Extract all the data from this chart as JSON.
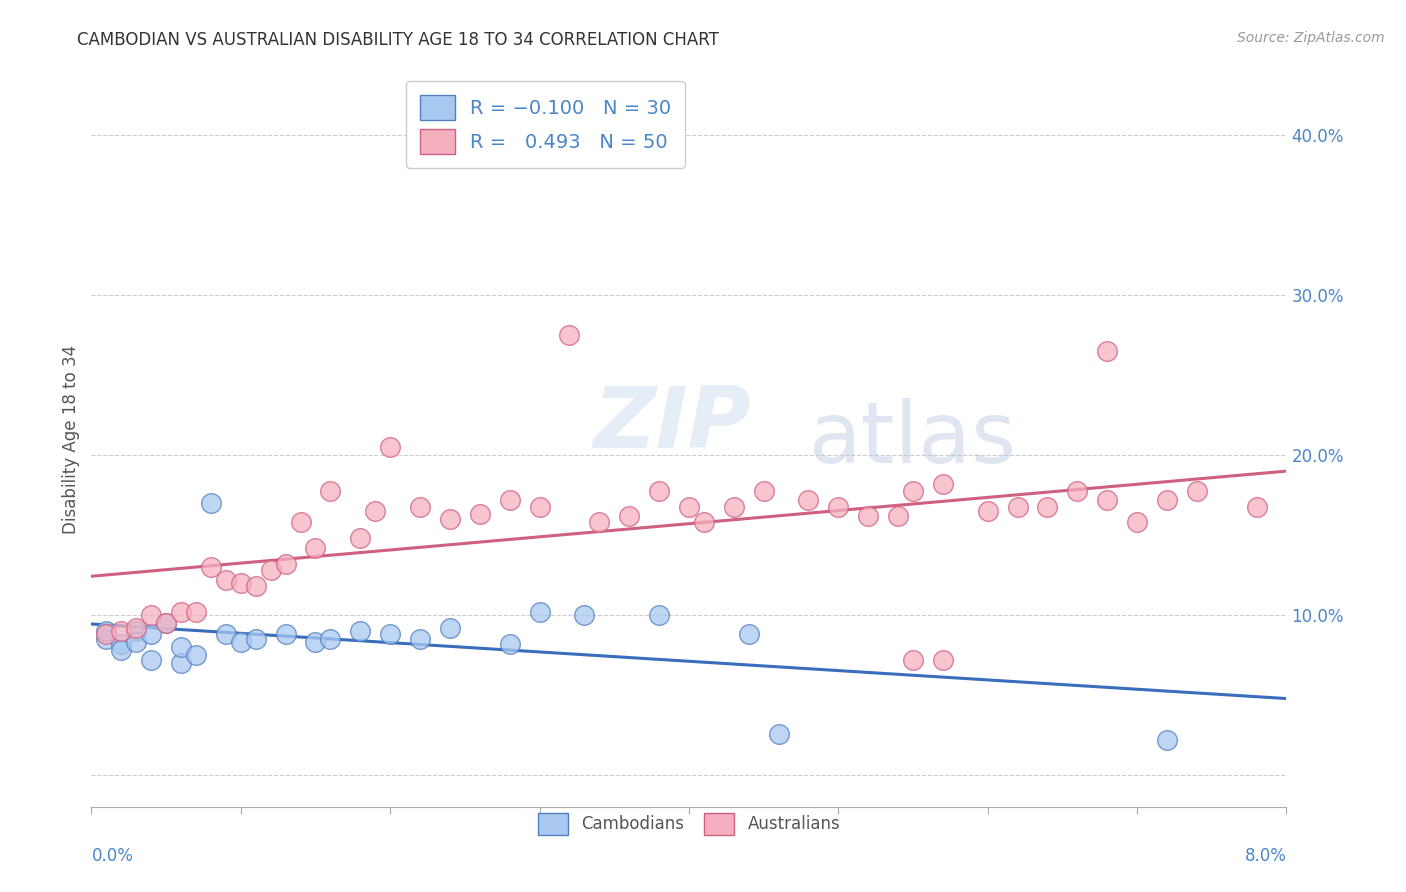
{
  "title": "CAMBODIAN VS AUSTRALIAN DISABILITY AGE 18 TO 34 CORRELATION CHART",
  "source": "Source: ZipAtlas.com",
  "ylabel": "Disability Age 18 to 34",
  "xlim": [
    0.0,
    0.08
  ],
  "ylim": [
    -0.02,
    0.44
  ],
  "yticks": [
    0.0,
    0.1,
    0.2,
    0.3,
    0.4
  ],
  "ytick_labels": [
    "",
    "10.0%",
    "20.0%",
    "30.0%",
    "40.0%"
  ],
  "xticks": [
    0.0,
    0.01,
    0.02,
    0.03,
    0.04,
    0.05,
    0.06,
    0.07,
    0.08
  ],
  "title_fontsize": 12,
  "source_fontsize": 10,
  "tick_color": "#4a86c8",
  "cambodian_fill": "#a8c8f0",
  "australian_fill": "#f5b0c0",
  "cambodian_edge": "#5080c0",
  "australian_edge": "#d06080",
  "cambodian_line": "#3a6ebd",
  "australian_line": "#d06080",
  "watermark_zip": "ZIP",
  "watermark_atlas": "atlas",
  "cambodians_x": [
    0.001,
    0.001,
    0.002,
    0.002,
    0.003,
    0.003,
    0.004,
    0.004,
    0.005,
    0.006,
    0.006,
    0.007,
    0.008,
    0.009,
    0.01,
    0.011,
    0.013,
    0.015,
    0.016,
    0.018,
    0.02,
    0.022,
    0.024,
    0.028,
    0.03,
    0.033,
    0.038,
    0.044,
    0.046,
    0.072
  ],
  "cambodians_y": [
    0.085,
    0.09,
    0.082,
    0.078,
    0.09,
    0.083,
    0.088,
    0.072,
    0.095,
    0.07,
    0.08,
    0.075,
    0.17,
    0.088,
    0.083,
    0.085,
    0.088,
    0.083,
    0.085,
    0.09,
    0.088,
    0.085,
    0.092,
    0.082,
    0.102,
    0.1,
    0.1,
    0.088,
    0.026,
    0.022
  ],
  "australians_x": [
    0.001,
    0.002,
    0.003,
    0.004,
    0.005,
    0.006,
    0.007,
    0.008,
    0.009,
    0.01,
    0.011,
    0.012,
    0.013,
    0.014,
    0.015,
    0.016,
    0.018,
    0.019,
    0.02,
    0.022,
    0.024,
    0.026,
    0.028,
    0.03,
    0.032,
    0.034,
    0.036,
    0.038,
    0.04,
    0.041,
    0.043,
    0.045,
    0.048,
    0.05,
    0.052,
    0.054,
    0.055,
    0.057,
    0.06,
    0.062,
    0.064,
    0.066,
    0.068,
    0.07,
    0.055,
    0.057,
    0.068,
    0.072,
    0.074,
    0.078
  ],
  "australians_y": [
    0.088,
    0.09,
    0.092,
    0.1,
    0.095,
    0.102,
    0.102,
    0.13,
    0.122,
    0.12,
    0.118,
    0.128,
    0.132,
    0.158,
    0.142,
    0.178,
    0.148,
    0.165,
    0.205,
    0.168,
    0.16,
    0.163,
    0.172,
    0.168,
    0.275,
    0.158,
    0.162,
    0.178,
    0.168,
    0.158,
    0.168,
    0.178,
    0.172,
    0.168,
    0.162,
    0.162,
    0.178,
    0.182,
    0.165,
    0.168,
    0.168,
    0.178,
    0.265,
    0.158,
    0.072,
    0.072,
    0.172,
    0.172,
    0.178,
    0.168
  ]
}
